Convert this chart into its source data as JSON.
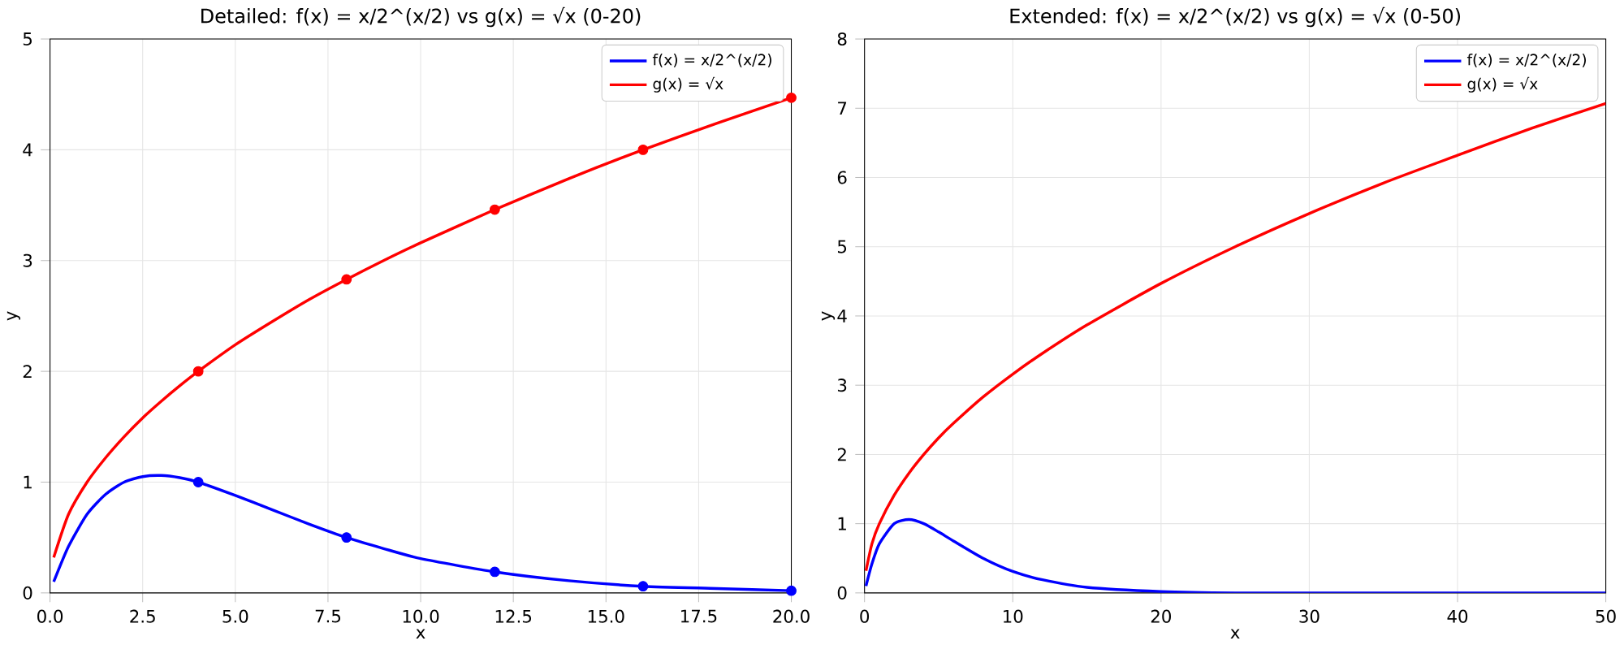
{
  "chart_data": [
    {
      "type": "line",
      "title": "Detailed: f(x) = x/2^(x/2) vs g(x) = √x (0-20)",
      "xlabel": "x",
      "ylabel": "y",
      "xlim": [
        0,
        20
      ],
      "ylim": [
        0,
        5
      ],
      "xticks": [
        {
          "value": 0,
          "label": "0.0"
        },
        {
          "value": 2.5,
          "label": "2.5"
        },
        {
          "value": 5,
          "label": "5.0"
        },
        {
          "value": 7.5,
          "label": "7.5"
        },
        {
          "value": 10,
          "label": "10.0"
        },
        {
          "value": 12.5,
          "label": "12.5"
        },
        {
          "value": 15,
          "label": "15.0"
        },
        {
          "value": 17.5,
          "label": "17.5"
        },
        {
          "value": 20,
          "label": "20.0"
        }
      ],
      "yticks": [
        0,
        1,
        2,
        3,
        4,
        5
      ],
      "grid": true,
      "legend": "top right",
      "line_style": "solid",
      "series": [
        {
          "name": "f(x) = x/2^(x/2)",
          "color": "#0000ff",
          "x": [
            0.1,
            0.5,
            1,
            1.5,
            2,
            2.5,
            3,
            3.5,
            4,
            5,
            6,
            7,
            8,
            9,
            10,
            12,
            14,
            16,
            18,
            20
          ],
          "values": [
            0.1,
            0.42,
            0.71,
            0.89,
            1.0,
            1.05,
            1.06,
            1.04,
            1.0,
            0.88,
            0.75,
            0.62,
            0.5,
            0.4,
            0.31,
            0.19,
            0.11,
            0.06,
            0.04,
            0.02
          ]
        },
        {
          "name": "g(x) = √x",
          "color": "#ff0000",
          "x": [
            0.1,
            0.5,
            1,
            1.5,
            2,
            2.5,
            3,
            3.5,
            4,
            5,
            6,
            7,
            8,
            9,
            10,
            12,
            14,
            16,
            18,
            20
          ],
          "values": [
            0.32,
            0.71,
            1.0,
            1.22,
            1.41,
            1.58,
            1.73,
            1.87,
            2.0,
            2.24,
            2.45,
            2.65,
            2.83,
            3.0,
            3.16,
            3.46,
            3.74,
            4.0,
            4.24,
            4.47
          ]
        },
        {
          "type": "scatter",
          "marker": "circle",
          "color": "#0000ff",
          "x": [
            4,
            8,
            12,
            16,
            20
          ],
          "values": [
            1.0,
            0.5,
            0.19,
            0.06,
            0.02
          ]
        },
        {
          "type": "scatter",
          "marker": "circle",
          "color": "#ff0000",
          "x": [
            4,
            8,
            12,
            16,
            20
          ],
          "values": [
            2.0,
            2.83,
            3.46,
            4.0,
            4.47
          ]
        }
      ]
    },
    {
      "type": "line",
      "title": "Extended: f(x) = x/2^(x/2) vs g(x) = √x (0-50)",
      "xlabel": "x",
      "ylabel": "y",
      "xlim": [
        0,
        50
      ],
      "ylim": [
        0,
        8
      ],
      "xticks": [
        0,
        10,
        20,
        30,
        40,
        50
      ],
      "yticks": [
        0,
        1,
        2,
        3,
        4,
        5,
        6,
        7,
        8
      ],
      "grid": true,
      "legend": "top right",
      "line_style": "solid",
      "series": [
        {
          "name": "f(x) = x/2^(x/2)",
          "color": "#0000ff",
          "x": [
            0.1,
            0.5,
            1,
            2,
            3,
            4,
            5,
            6,
            8,
            10,
            12,
            15,
            20,
            25,
            30,
            35,
            40,
            45,
            50
          ],
          "values": [
            0.1,
            0.42,
            0.71,
            1.0,
            1.06,
            1.0,
            0.88,
            0.75,
            0.5,
            0.31,
            0.19,
            0.08,
            0.02,
            0.0,
            0.0,
            0.0,
            0.0,
            0.0,
            0.0
          ]
        },
        {
          "name": "g(x) = √x",
          "color": "#ff0000",
          "x": [
            0.1,
            0.5,
            1,
            2,
            3,
            4,
            5,
            6,
            8,
            10,
            12,
            15,
            20,
            25,
            30,
            35,
            40,
            45,
            50
          ],
          "values": [
            0.32,
            0.71,
            1.0,
            1.41,
            1.73,
            2.0,
            2.24,
            2.45,
            2.83,
            3.16,
            3.46,
            3.87,
            4.47,
            5.0,
            5.48,
            5.92,
            6.32,
            6.71,
            7.07
          ]
        }
      ]
    }
  ]
}
